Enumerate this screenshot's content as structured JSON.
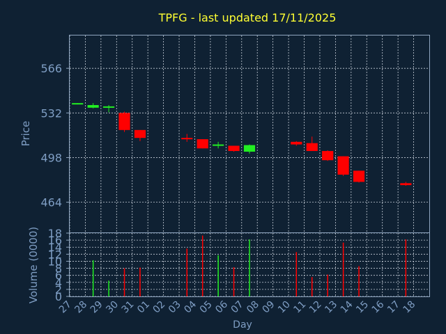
{
  "colors": {
    "background": "#0f2133",
    "axis": "#8fa6c0",
    "tick_text": "#7f9ec4",
    "grid": "#c8d0da",
    "title": "#ffff33",
    "up": "#22ee22",
    "down": "#ff0000"
  },
  "chart_data": [
    {
      "type": "candlestick",
      "title": "TPFG - last updated 17/11/2025",
      "xlabel": "Day",
      "ylabel": "Price",
      "ylim": [
        441,
        591
      ],
      "yticks": [
        464,
        498,
        532,
        566
      ],
      "grid": true,
      "candles": [
        {
          "day": "27",
          "open": 539,
          "high": 539.5,
          "low": 538.5,
          "close": 539.5
        },
        {
          "day": "28",
          "open": 536,
          "high": 539.5,
          "low": 535.5,
          "close": 538
        },
        {
          "day": "29",
          "open": 536.5,
          "high": 538,
          "low": 532.5,
          "close": 537
        },
        {
          "day": "30",
          "open": 532,
          "high": 533,
          "low": 517.5,
          "close": 519
        },
        {
          "day": "31",
          "open": 519,
          "high": 519,
          "low": 510.5,
          "close": 513
        },
        {
          "day": "03",
          "open": 513,
          "high": 516,
          "low": 510,
          "close": 512
        },
        {
          "day": "04",
          "open": 512,
          "high": 512,
          "low": 505,
          "close": 505
        },
        {
          "day": "05",
          "open": 507,
          "high": 510,
          "low": 505,
          "close": 508
        },
        {
          "day": "06",
          "open": 507,
          "high": 507,
          "low": 502.5,
          "close": 503
        },
        {
          "day": "07",
          "open": 502.5,
          "high": 508,
          "low": 501,
          "close": 507.5
        },
        {
          "day": "10",
          "open": 510,
          "high": 510.5,
          "low": 507,
          "close": 508
        },
        {
          "day": "11",
          "open": 509,
          "high": 514,
          "low": 503,
          "close": 503
        },
        {
          "day": "12",
          "open": 503,
          "high": 503.5,
          "low": 495.5,
          "close": 496
        },
        {
          "day": "13",
          "open": 499,
          "high": 499,
          "low": 484,
          "close": 485
        },
        {
          "day": "14",
          "open": 488,
          "high": 488,
          "low": 479,
          "close": 479.5
        },
        {
          "day": "17",
          "open": 478.5,
          "high": 479.5,
          "low": 476.5,
          "close": 477
        }
      ]
    },
    {
      "type": "bar",
      "xlabel": "Day",
      "ylabel": "Volume (0000)",
      "ylim": [
        0,
        18
      ],
      "yticks": [
        0,
        2,
        4,
        6,
        8,
        10,
        12,
        14,
        16,
        18
      ],
      "grid": true,
      "categories": [
        "27",
        "28",
        "29",
        "30",
        "31",
        "01",
        "02",
        "03",
        "04",
        "05",
        "06",
        "07",
        "08",
        "09",
        "10",
        "11",
        "12",
        "13",
        "14",
        "15",
        "16",
        "17",
        "18"
      ],
      "volumes": [
        {
          "day": "28",
          "value": 10.3,
          "direction": "up"
        },
        {
          "day": "29",
          "value": 4.5,
          "direction": "up"
        },
        {
          "day": "30",
          "value": 8.0,
          "direction": "down"
        },
        {
          "day": "31",
          "value": 8.2,
          "direction": "down"
        },
        {
          "day": "03",
          "value": 13.6,
          "direction": "down"
        },
        {
          "day": "04",
          "value": 17.3,
          "direction": "down"
        },
        {
          "day": "05",
          "value": 11.7,
          "direction": "up"
        },
        {
          "day": "06",
          "value": 8.3,
          "direction": "down"
        },
        {
          "day": "07",
          "value": 16.2,
          "direction": "up"
        },
        {
          "day": "10",
          "value": 12.6,
          "direction": "down"
        },
        {
          "day": "11",
          "value": 5.5,
          "direction": "down"
        },
        {
          "day": "12",
          "value": 6.2,
          "direction": "down"
        },
        {
          "day": "13",
          "value": 15.3,
          "direction": "down"
        },
        {
          "day": "14",
          "value": 8.6,
          "direction": "down"
        },
        {
          "day": "17",
          "value": 16.2,
          "direction": "down"
        }
      ]
    }
  ]
}
